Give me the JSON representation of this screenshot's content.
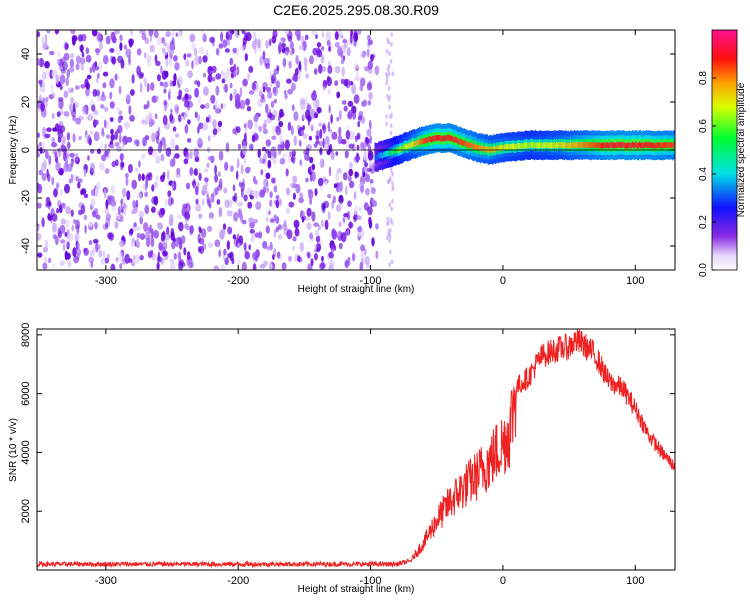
{
  "title": "C2E6.2025.295.08.30.R09",
  "colors": {
    "snr_line": "#ee2222",
    "frame": "#000000",
    "noise_dark": "#6a0dd8",
    "noise_light": "#cfaef5"
  },
  "chart_data": [
    {
      "type": "heatmap",
      "xlabel": "Height of straight line (km)",
      "ylabel": "Frequency (Hz)",
      "xlim": [
        -352,
        130
      ],
      "ylim": [
        -50,
        50
      ],
      "x_ticks": [
        -300,
        -200,
        -100,
        0,
        100
      ],
      "x_tick_labels": [
        "-300",
        "-200",
        "-100",
        "0",
        "100"
      ],
      "y_ticks": [
        -40,
        -20,
        0,
        20,
        40
      ],
      "y_tick_labels": [
        "-40",
        "-20",
        "0",
        "20",
        "40"
      ],
      "grid": false,
      "colorbar": {
        "label": "Normalized spectral amplitude",
        "range": [
          0,
          1
        ],
        "ticks": [
          0.0,
          0.2,
          0.4,
          0.6,
          0.8
        ],
        "tick_labels": [
          "0.0",
          "0.2",
          "0.4",
          "0.6",
          "0.8"
        ],
        "colormap": "rainbow (white-violet-blue-cyan-green-yellow-red-magenta)"
      },
      "noise_region": {
        "x": [
          -352,
          -95
        ],
        "y": [
          -50,
          50
        ]
      },
      "sparse_noise_band": {
        "x": [
          -88,
          -83
        ]
      },
      "signal_ridge": {
        "x": [
          -97,
          -90,
          -80,
          -70,
          -60,
          -50,
          -40,
          -30,
          -20,
          -10,
          0,
          20,
          40,
          60,
          80,
          100,
          130
        ],
        "frequency": [
          -3,
          -2,
          0,
          2,
          4,
          5,
          5,
          3,
          1,
          0,
          1,
          2,
          2,
          2,
          2,
          2,
          2
        ],
        "amplitude": [
          0.3,
          0.4,
          0.6,
          0.7,
          0.85,
          0.9,
          0.88,
          0.85,
          0.8,
          0.75,
          0.7,
          0.65,
          0.7,
          0.8,
          0.9,
          0.9,
          0.85
        ]
      }
    },
    {
      "type": "line",
      "xlabel": "Height of straight line (km)",
      "ylabel": "SNR (10 * v/v)",
      "xlim": [
        -352,
        130
      ],
      "ylim": [
        0,
        8200
      ],
      "x_ticks": [
        -300,
        -200,
        -100,
        0,
        100
      ],
      "x_tick_labels": [
        "-300",
        "-200",
        "-100",
        "0",
        "100"
      ],
      "y_ticks": [
        2000,
        4000,
        6000,
        8000
      ],
      "y_tick_labels": [
        "2000",
        "4000",
        "6000",
        "8000"
      ],
      "grid": false,
      "series": [
        {
          "x": [
            -352,
            -300,
            -250,
            -200,
            -150,
            -100,
            -80,
            -70,
            -60,
            -50,
            -40,
            -30,
            -20,
            -10,
            0,
            5,
            10,
            15,
            20,
            25,
            30,
            40,
            50,
            55,
            60,
            70,
            80,
            90,
            100,
            110,
            120,
            130
          ],
          "y": [
            200,
            200,
            200,
            200,
            200,
            200,
            200,
            300,
            900,
            1700,
            2300,
            2800,
            3200,
            3700,
            4300,
            4700,
            6200,
            6400,
            6600,
            7000,
            7300,
            7500,
            7600,
            7800,
            7700,
            7300,
            6400,
            6200,
            5500,
            4600,
            4000,
            3500
          ]
        }
      ]
    }
  ]
}
